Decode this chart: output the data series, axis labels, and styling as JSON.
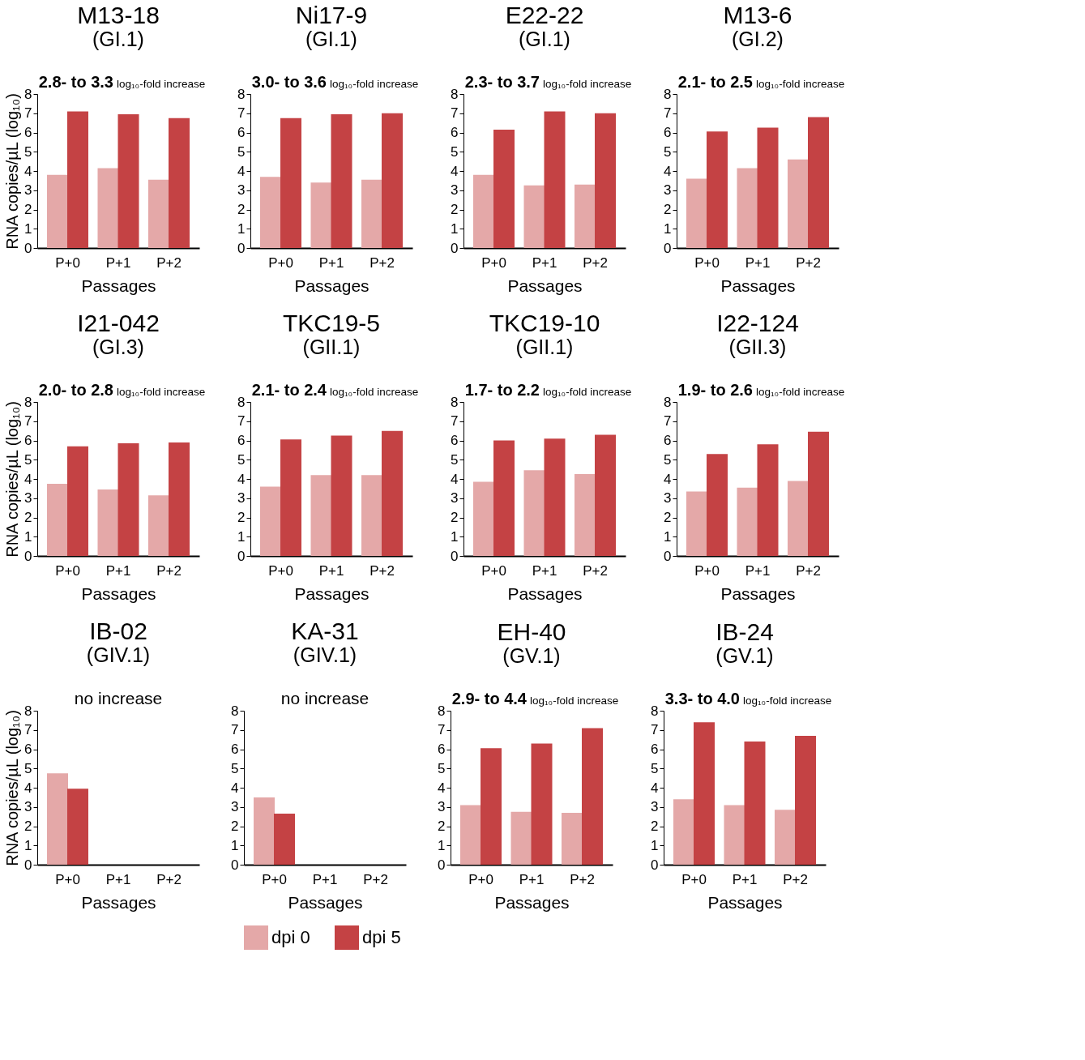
{
  "chart_data": [
    {
      "type": "bar",
      "title": "M13-18",
      "subtitle": "(GI.1)",
      "xlabel": "Passages",
      "ylabel": "RNA copies/µL (log₁₀)",
      "annotations": [
        "2.8- to 3.3",
        "log₁₀-fold increase"
      ],
      "categories": [
        "P+0",
        "P+1",
        "P+2"
      ],
      "series": [
        {
          "color": "#e4a8a8",
          "values": [
            3.8,
            4.15,
            3.55
          ]
        },
        {
          "color": "#c44244",
          "values": [
            7.1,
            6.95,
            6.75
          ]
        }
      ],
      "ylim": [
        0,
        8
      ],
      "yticks": [
        0,
        1,
        2,
        3,
        4,
        5,
        6,
        7,
        8
      ],
      "grid": false
    },
    {
      "type": "bar",
      "title": "Ni17-9",
      "subtitle": "(GI.1)",
      "xlabel": "Passages",
      "annotations": [
        "3.0- to 3.6",
        "log₁₀-fold increase"
      ],
      "categories": [
        "P+0",
        "P+1",
        "P+2"
      ],
      "series": [
        {
          "color": "#e4a8a8",
          "values": [
            3.7,
            3.4,
            3.55
          ]
        },
        {
          "color": "#c44244",
          "values": [
            6.75,
            6.95,
            7.0
          ]
        }
      ],
      "ylim": [
        0,
        8
      ],
      "yticks": [
        0,
        1,
        2,
        3,
        4,
        5,
        6,
        7,
        8
      ],
      "grid": false
    },
    {
      "type": "bar",
      "title": "E22-22",
      "subtitle": "(GI.1)",
      "xlabel": "Passages",
      "annotations": [
        "2.3- to 3.7",
        "log₁₀-fold increase"
      ],
      "categories": [
        "P+0",
        "P+1",
        "P+2"
      ],
      "series": [
        {
          "color": "#e4a8a8",
          "values": [
            3.8,
            3.25,
            3.3
          ]
        },
        {
          "color": "#c44244",
          "values": [
            6.15,
            7.1,
            7.0
          ]
        }
      ],
      "ylim": [
        0,
        8
      ],
      "yticks": [
        0,
        1,
        2,
        3,
        4,
        5,
        6,
        7,
        8
      ],
      "grid": false
    },
    {
      "type": "bar",
      "title": "M13-6",
      "subtitle": "(GI.2)",
      "xlabel": "Passages",
      "annotations": [
        "2.1- to 2.5",
        "log₁₀-fold increase"
      ],
      "categories": [
        "P+0",
        "P+1",
        "P+2"
      ],
      "series": [
        {
          "color": "#e4a8a8",
          "values": [
            3.6,
            4.15,
            4.6
          ]
        },
        {
          "color": "#c44244",
          "values": [
            6.05,
            6.25,
            6.8
          ]
        }
      ],
      "ylim": [
        0,
        8
      ],
      "yticks": [
        0,
        1,
        2,
        3,
        4,
        5,
        6,
        7,
        8
      ],
      "grid": false
    },
    {
      "type": "bar",
      "title": "I21-042",
      "subtitle": "(GI.3)",
      "xlabel": "Passages",
      "ylabel": "RNA copies/µL (log₁₀)",
      "annotations": [
        "2.0- to 2.8",
        "log₁₀-fold increase"
      ],
      "categories": [
        "P+0",
        "P+1",
        "P+2"
      ],
      "series": [
        {
          "color": "#e4a8a8",
          "values": [
            3.75,
            3.45,
            3.15
          ]
        },
        {
          "color": "#c44244",
          "values": [
            5.7,
            5.85,
            5.9
          ]
        }
      ],
      "ylim": [
        0,
        8
      ],
      "yticks": [
        0,
        1,
        2,
        3,
        4,
        5,
        6,
        7,
        8
      ],
      "grid": false
    },
    {
      "type": "bar",
      "title": "TKC19-5",
      "subtitle": "(GII.1)",
      "xlabel": "Passages",
      "annotations": [
        "2.1- to 2.4",
        "log₁₀-fold increase"
      ],
      "categories": [
        "P+0",
        "P+1",
        "P+2"
      ],
      "series": [
        {
          "color": "#e4a8a8",
          "values": [
            3.6,
            4.2,
            4.2
          ]
        },
        {
          "color": "#c44244",
          "values": [
            6.05,
            6.25,
            6.5
          ]
        }
      ],
      "ylim": [
        0,
        8
      ],
      "yticks": [
        0,
        1,
        2,
        3,
        4,
        5,
        6,
        7,
        8
      ],
      "grid": false
    },
    {
      "type": "bar",
      "title": "TKC19-10",
      "subtitle": "(GII.1)",
      "xlabel": "Passages",
      "annotations": [
        "1.7- to 2.2",
        "log₁₀-fold increase"
      ],
      "categories": [
        "P+0",
        "P+1",
        "P+2"
      ],
      "series": [
        {
          "color": "#e4a8a8",
          "values": [
            3.85,
            4.45,
            4.25
          ]
        },
        {
          "color": "#c44244",
          "values": [
            6.0,
            6.1,
            6.3
          ]
        }
      ],
      "ylim": [
        0,
        8
      ],
      "yticks": [
        0,
        1,
        2,
        3,
        4,
        5,
        6,
        7,
        8
      ],
      "grid": false
    },
    {
      "type": "bar",
      "title": "I22-124",
      "subtitle": "(GII.3)",
      "xlabel": "Passages",
      "annotations": [
        "1.9- to 2.6",
        "log₁₀-fold increase"
      ],
      "categories": [
        "P+0",
        "P+1",
        "P+2"
      ],
      "series": [
        {
          "color": "#e4a8a8",
          "values": [
            3.35,
            3.55,
            3.9
          ]
        },
        {
          "color": "#c44244",
          "values": [
            5.3,
            5.8,
            6.45
          ]
        }
      ],
      "ylim": [
        0,
        8
      ],
      "yticks": [
        0,
        1,
        2,
        3,
        4,
        5,
        6,
        7,
        8
      ],
      "grid": false
    },
    {
      "type": "bar",
      "title": "IB-02",
      "subtitle": "(GIV.1)",
      "xlabel": "Passages",
      "ylabel": "RNA copies/µL (log₁₀)",
      "annotations": [
        "no increase"
      ],
      "categories": [
        "P+0",
        "P+1",
        "P+2"
      ],
      "series": [
        {
          "color": "#e4a8a8",
          "values": [
            4.75,
            null,
            null
          ]
        },
        {
          "color": "#c44244",
          "values": [
            3.95,
            null,
            null
          ]
        }
      ],
      "ylim": [
        0,
        8
      ],
      "yticks": [
        0,
        1,
        2,
        3,
        4,
        5,
        6,
        7,
        8
      ],
      "grid": false
    },
    {
      "type": "bar",
      "title": "KA-31",
      "subtitle": "(GIV.1)",
      "xlabel": "Passages",
      "annotations": [
        "no increase"
      ],
      "categories": [
        "P+0",
        "P+1",
        "P+2"
      ],
      "series": [
        {
          "name": "dpi 0",
          "color": "#e4a8a8",
          "values": [
            3.5,
            null,
            null
          ]
        },
        {
          "name": "dpi 5",
          "color": "#c44244",
          "values": [
            2.65,
            null,
            null
          ]
        }
      ],
      "ylim": [
        0,
        8
      ],
      "yticks": [
        0,
        1,
        2,
        3,
        4,
        5,
        6,
        7,
        8
      ],
      "grid": false,
      "legend": "bottom"
    },
    {
      "type": "bar",
      "title": "EH-40",
      "subtitle": "(GV.1)",
      "xlabel": "Passages",
      "annotations": [
        "2.9- to 4.4",
        "log₁₀-fold increase"
      ],
      "categories": [
        "P+0",
        "P+1",
        "P+2"
      ],
      "series": [
        {
          "color": "#e4a8a8",
          "values": [
            3.1,
            2.75,
            2.7
          ]
        },
        {
          "color": "#c44244",
          "values": [
            6.05,
            6.3,
            7.1
          ]
        }
      ],
      "ylim": [
        0,
        8
      ],
      "yticks": [
        0,
        1,
        2,
        3,
        4,
        5,
        6,
        7,
        8
      ],
      "grid": false
    },
    {
      "type": "bar",
      "title": "IB-24",
      "subtitle": "(GV.1)",
      "xlabel": "Passages",
      "annotations": [
        "3.3- to 4.0",
        "log₁₀-fold increase"
      ],
      "categories": [
        "P+0",
        "P+1",
        "P+2"
      ],
      "series": [
        {
          "color": "#e4a8a8",
          "values": [
            3.4,
            3.1,
            2.85
          ]
        },
        {
          "color": "#c44244",
          "values": [
            7.4,
            6.4,
            6.7
          ]
        }
      ],
      "ylim": [
        0,
        8
      ],
      "yticks": [
        0,
        1,
        2,
        3,
        4,
        5,
        6,
        7,
        8
      ],
      "grid": false
    }
  ]
}
